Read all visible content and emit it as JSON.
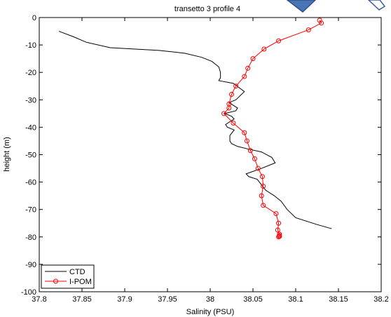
{
  "chart_data": {
    "type": "line",
    "title": "transetto 3 profile 4",
    "xlabel": "Salinity (PSU)",
    "ylabel": "height (m)",
    "xlim": [
      37.8,
      38.2
    ],
    "ylim": [
      -100,
      0
    ],
    "xticks": [
      37.8,
      37.85,
      37.9,
      37.95,
      38,
      38.05,
      38.1,
      38.15,
      38.2
    ],
    "xtick_labels": [
      "37.8",
      "37.85",
      "37.9",
      "37.95",
      "38",
      "38.05",
      "38.1",
      "38.15",
      "38.2"
    ],
    "yticks": [
      0,
      -10,
      -20,
      -30,
      -40,
      -50,
      -60,
      -70,
      -80,
      -90,
      -100
    ],
    "ytick_labels": [
      "0",
      "-10",
      "-20",
      "-30",
      "-40",
      "-50",
      "-60",
      "-70",
      "-80",
      "-90",
      "-100"
    ],
    "grid": false,
    "legend_position": "bottom-left",
    "series": [
      {
        "name": "CTD",
        "color": "#000000",
        "marker": "none",
        "points": [
          [
            37.823,
            -5
          ],
          [
            37.84,
            -7
          ],
          [
            37.855,
            -9
          ],
          [
            37.883,
            -11
          ],
          [
            37.94,
            -12
          ],
          [
            37.97,
            -13
          ],
          [
            37.99,
            -14.5
          ],
          [
            38.002,
            -16
          ],
          [
            38.01,
            -18
          ],
          [
            38.012,
            -20
          ],
          [
            38.012,
            -22
          ],
          [
            38.01,
            -23
          ],
          [
            38.027,
            -24
          ],
          [
            38.04,
            -27
          ],
          [
            38.03,
            -30
          ],
          [
            38.022,
            -31
          ],
          [
            38.032,
            -33
          ],
          [
            38.03,
            -34
          ],
          [
            38.017,
            -35
          ],
          [
            38.025,
            -36
          ],
          [
            38.028,
            -37
          ],
          [
            38.018,
            -39
          ],
          [
            38.02,
            -40
          ],
          [
            38.028,
            -41
          ],
          [
            38.023,
            -43
          ],
          [
            38.023,
            -45
          ],
          [
            38.025,
            -46
          ],
          [
            38.032,
            -47
          ],
          [
            38.045,
            -48
          ],
          [
            38.06,
            -49
          ],
          [
            38.072,
            -51
          ],
          [
            38.076,
            -53
          ],
          [
            38.06,
            -55
          ],
          [
            38.042,
            -57
          ],
          [
            38.045,
            -58
          ],
          [
            38.055,
            -59
          ],
          [
            38.06,
            -61
          ],
          [
            38.065,
            -63
          ],
          [
            38.075,
            -65
          ],
          [
            38.083,
            -67
          ],
          [
            38.09,
            -70
          ],
          [
            38.1,
            -73
          ],
          [
            38.125,
            -75.5
          ],
          [
            38.142,
            -77
          ]
        ]
      },
      {
        "name": "I-POM",
        "color": "#ff0000",
        "marker": "circle",
        "points": [
          [
            38.128,
            -1
          ],
          [
            38.13,
            -2
          ],
          [
            38.115,
            -4.5
          ],
          [
            38.08,
            -8.5
          ],
          [
            38.063,
            -11.5
          ],
          [
            38.05,
            -15
          ],
          [
            38.044,
            -18.5
          ],
          [
            38.04,
            -21.5
          ],
          [
            38.03,
            -25
          ],
          [
            38.025,
            -28
          ],
          [
            38.022,
            -31.5
          ],
          [
            38.022,
            -33
          ],
          [
            38.016,
            -35
          ],
          [
            38.027,
            -38.5
          ],
          [
            38.04,
            -42
          ],
          [
            38.043,
            -45
          ],
          [
            38.047,
            -48.5
          ],
          [
            38.052,
            -51.5
          ],
          [
            38.056,
            -55
          ],
          [
            38.061,
            -58
          ],
          [
            38.062,
            -61.5
          ],
          [
            38.06,
            -65
          ],
          [
            38.062,
            -68.5
          ],
          [
            38.077,
            -71.5
          ],
          [
            38.08,
            -75
          ],
          [
            38.079,
            -77.5
          ],
          [
            38.081,
            -79
          ],
          [
            38.081,
            -79.5
          ],
          [
            38.081,
            -79.8
          ],
          [
            38.08,
            -80
          ]
        ]
      }
    ]
  }
}
